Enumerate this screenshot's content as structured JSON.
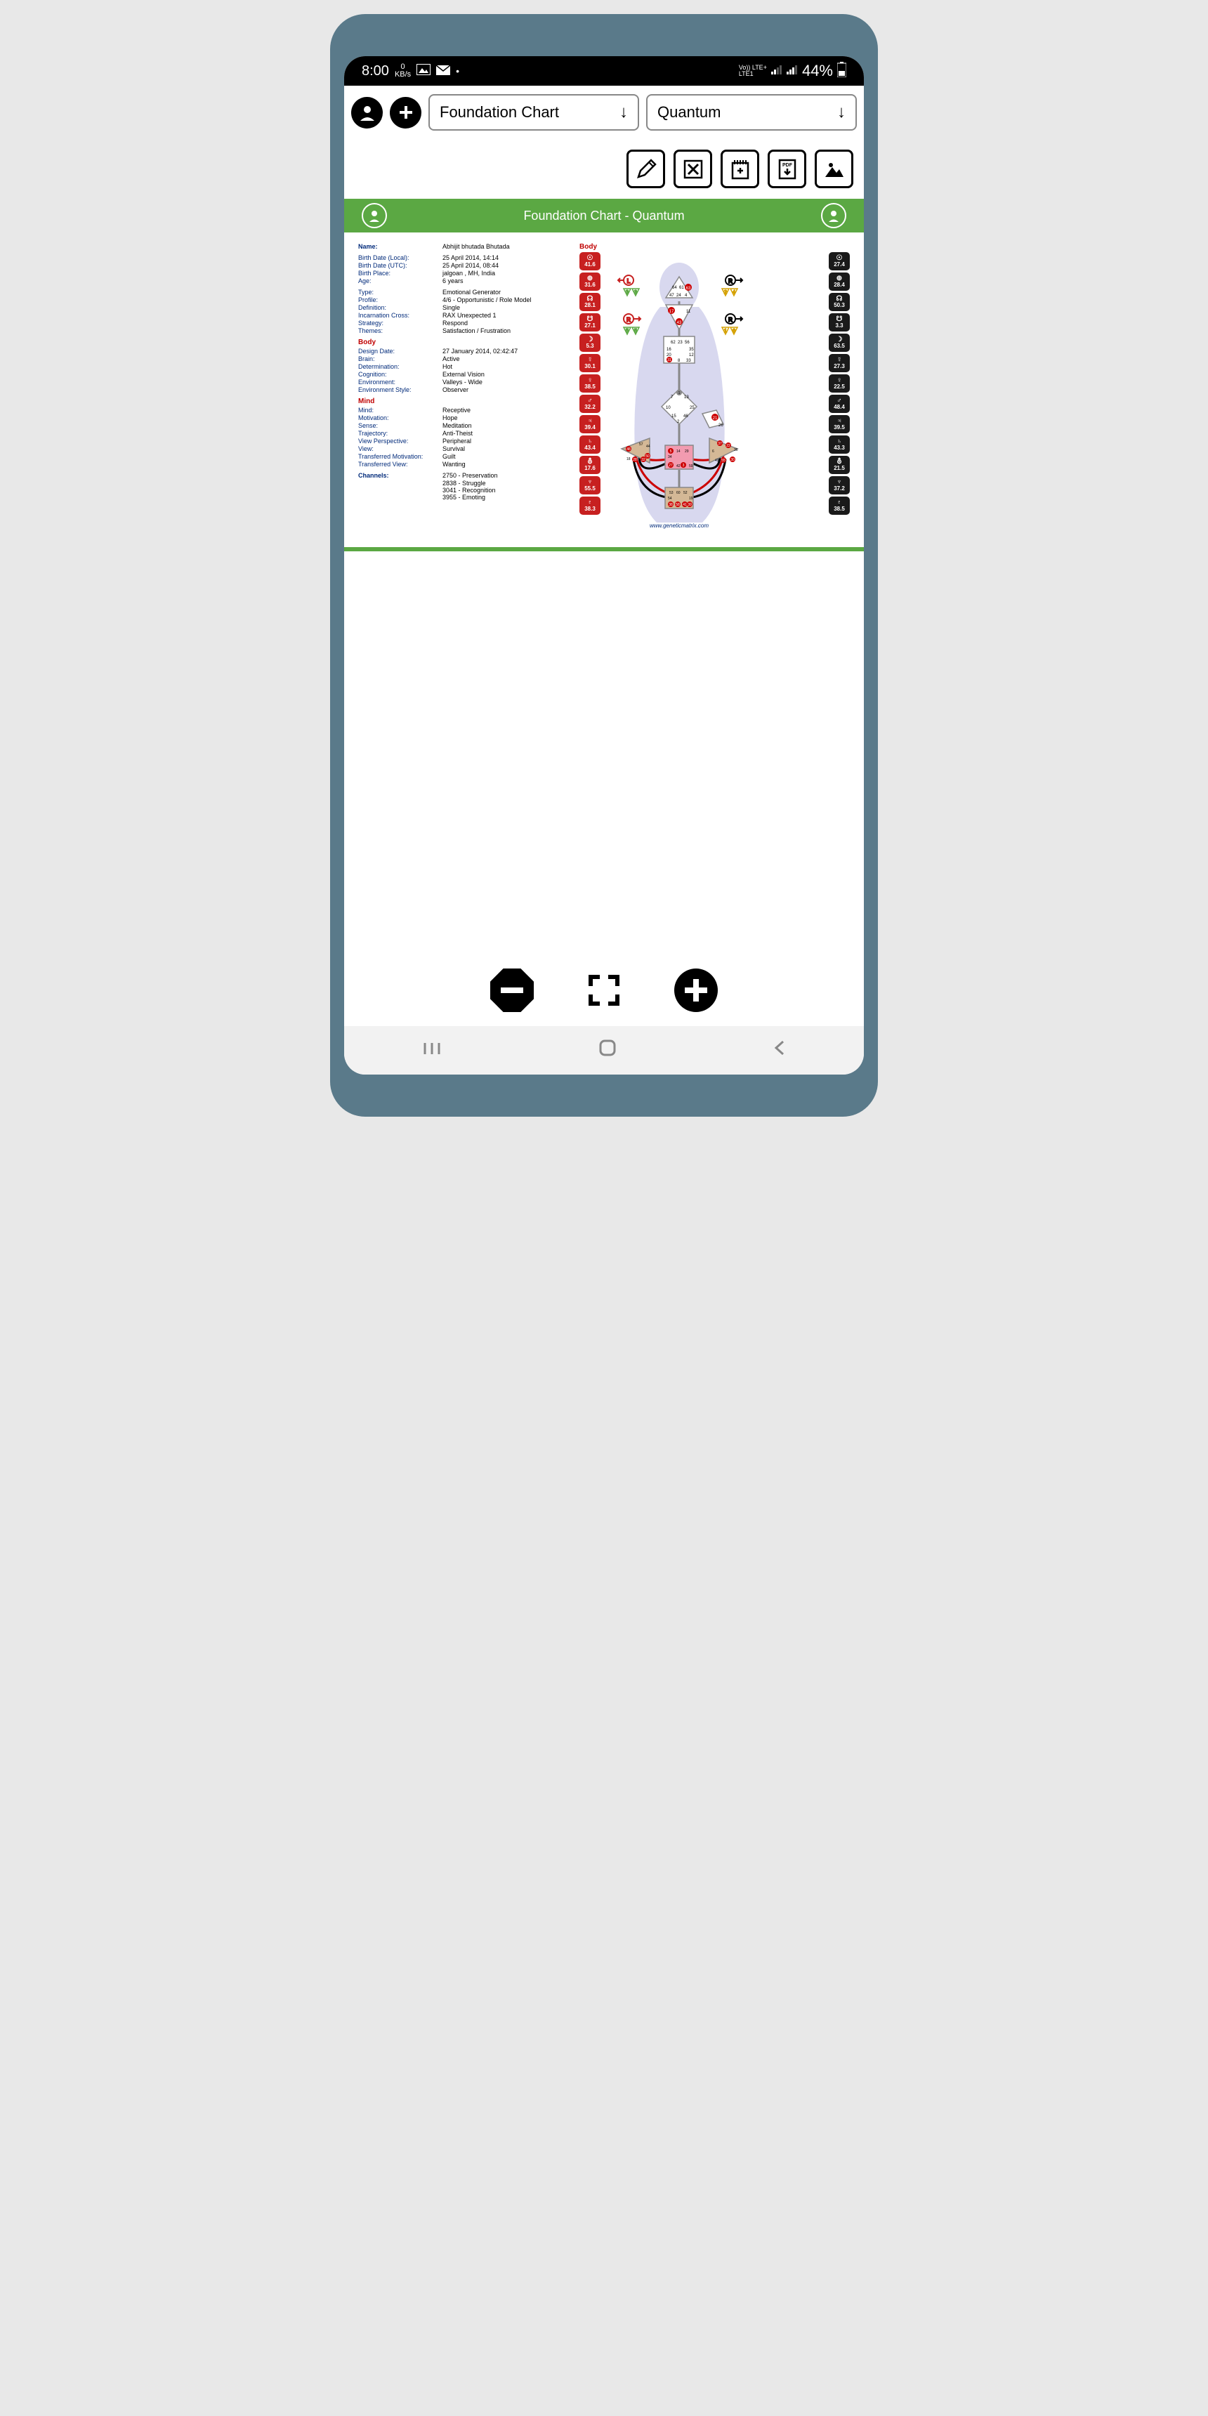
{
  "status": {
    "time": "8:00",
    "kbs": "0",
    "kbs_label": "KB/s",
    "network": "Vo)) LTE+\nLTE1",
    "battery": "44%"
  },
  "toolbar": {
    "dropdown1": "Foundation Chart",
    "dropdown2": "Quantum"
  },
  "header": {
    "title": "Foundation Chart - Quantum"
  },
  "info": {
    "name_label": "Name:",
    "name": "Abhijit bhutada Bhutada",
    "birth_local_label": "Birth Date (Local):",
    "birth_local": "25 April 2014, 14:14",
    "birth_utc_label": "Birth Date (UTC):",
    "birth_utc": "25 April 2014, 08:44",
    "birth_place_label": "Birth Place:",
    "birth_place": "jalgoan , MH, India",
    "age_label": "Age:",
    "age": "6 years",
    "type_label": "Type:",
    "type": "Emotional Generator",
    "profile_label": "Profile:",
    "profile": "4/6 - Opportunistic / Role Model",
    "definition_label": "Definition:",
    "definition": "Single",
    "cross_label": "Incarnation Cross:",
    "cross": "RAX Unexpected 1",
    "strategy_label": "Strategy:",
    "strategy": "Respond",
    "themes_label": "Themes:",
    "themes": "Satisfaction / Frustration",
    "body_title": "Body",
    "design_date_label": "Design Date:",
    "design_date": "27 January 2014, 02:42:47",
    "brain_label": "Brain:",
    "brain": "Active",
    "determination_label": "Determination:",
    "determination": "Hot",
    "cognition_label": "Cognition:",
    "cognition": "External Vision",
    "environment_label": "Environment:",
    "environment": "Valleys - Wide",
    "env_style_label": "Environment Style:",
    "env_style": "Observer",
    "mind_title": "Mind",
    "mind_label": "Mind:",
    "mind": "Receptive",
    "motivation_label": "Motivation:",
    "motivation": "Hope",
    "sense_label": "Sense:",
    "sense": "Meditation",
    "trajectory_label": "Trajectory:",
    "trajectory": "Anti-Theist",
    "view_persp_label": "View Perspective:",
    "view_persp": "Peripheral",
    "view_label": "View:",
    "view": "Survival",
    "trans_motiv_label": "Transferred Motivation:",
    "trans_motiv": "Guilt",
    "trans_view_label": "Transferred View:",
    "trans_view": "Wanting",
    "channels_label": "Channels:",
    "channel1": "2750 - Preservation",
    "channel2": "2838 - Struggle",
    "channel3": "3041 - Recognition",
    "channel4": "3955 - Emoting"
  },
  "planets": {
    "body_label": "Body",
    "red": [
      "41.6",
      "31.6",
      "28.1",
      "27.1",
      "5.3",
      "30.1",
      "38.5",
      "32.2",
      "39.4",
      "43.4",
      "17.6",
      "55.5",
      "38.3"
    ],
    "black": [
      "27.4",
      "28.4",
      "50.3",
      "3.3",
      "63.5",
      "27.3",
      "22.5",
      "48.4",
      "39.5",
      "43.3",
      "21.5",
      "37.2",
      "38.5"
    ]
  },
  "bodygraph": {
    "footer": "www.geneticmatrix.com",
    "colors": {
      "body_fill": "#c7c7e8",
      "defined": "#f29bb0",
      "undefined_fill": "#ffffff",
      "tan": "#d4b896",
      "stroke": "#888",
      "red_channel": "#cc0000",
      "black_channel": "#000000"
    }
  }
}
